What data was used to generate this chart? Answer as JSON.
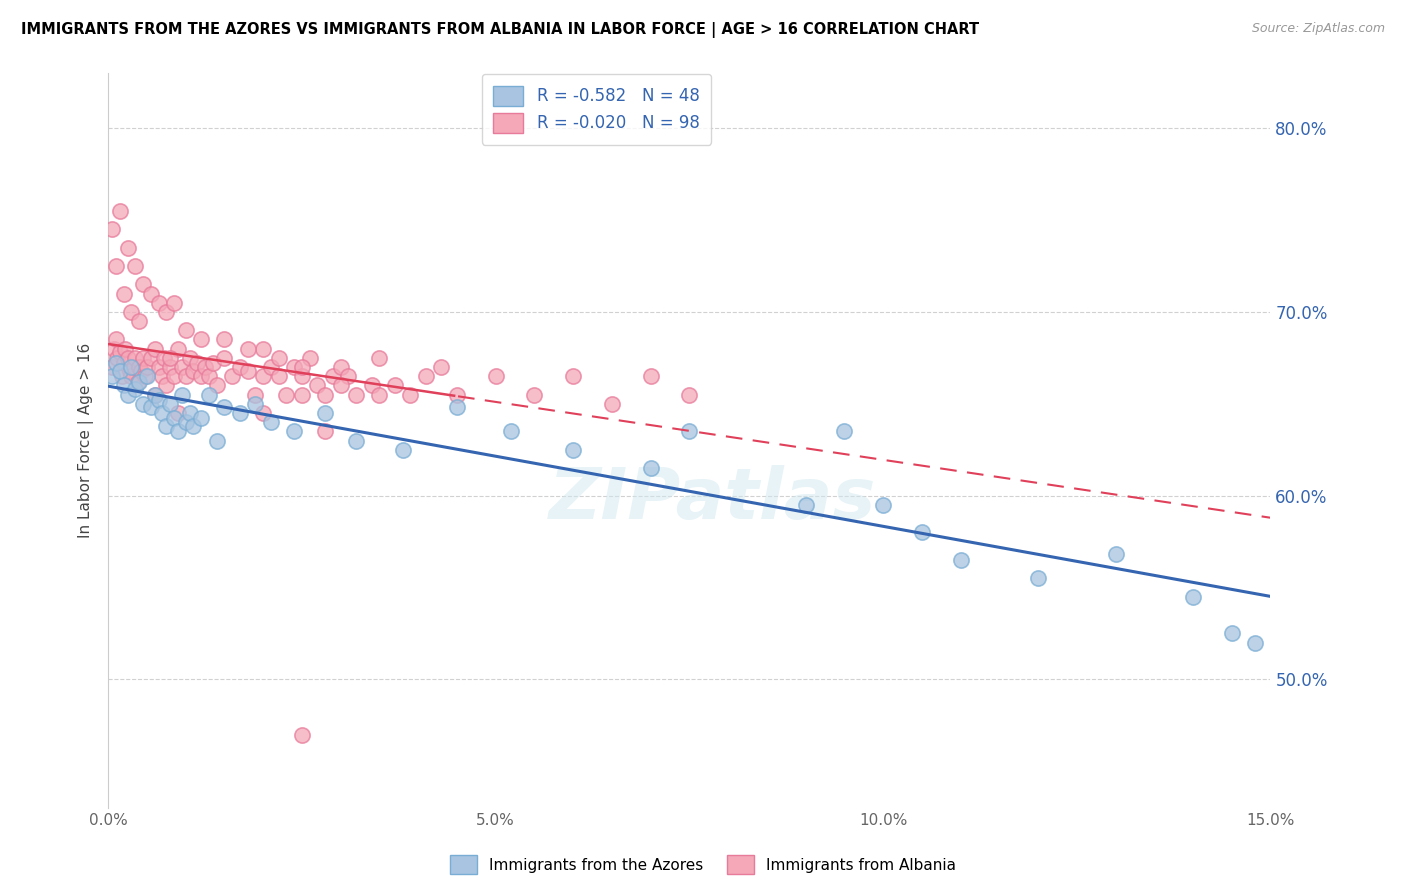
{
  "title": "IMMIGRANTS FROM THE AZORES VS IMMIGRANTS FROM ALBANIA IN LABOR FORCE | AGE > 16 CORRELATION CHART",
  "source": "Source: ZipAtlas.com",
  "xlim": [
    0.0,
    15.0
  ],
  "ylim": [
    43.0,
    83.0
  ],
  "ylabel": "In Labor Force | Age > 16",
  "legend_label1": "Immigrants from the Azores",
  "legend_label2": "Immigrants from Albania",
  "R1": "-0.582",
  "N1": "48",
  "R2": "-0.020",
  "N2": "98",
  "color_azores": "#a8c4e0",
  "color_albania": "#f4a8b8",
  "edge_azores": "#7aadd4",
  "edge_albania": "#e87a9a",
  "line_color_azores": "#3565b0",
  "line_color_albania": "#e0405a",
  "watermark": "ZIPatlas",
  "azores_x": [
    0.05,
    0.1,
    0.15,
    0.2,
    0.25,
    0.3,
    0.35,
    0.4,
    0.45,
    0.5,
    0.55,
    0.6,
    0.65,
    0.7,
    0.75,
    0.8,
    0.85,
    0.9,
    0.95,
    1.0,
    1.05,
    1.1,
    1.2,
    1.3,
    1.4,
    1.5,
    1.7,
    1.9,
    2.1,
    2.4,
    2.8,
    3.2,
    3.8,
    4.5,
    5.2,
    6.0,
    7.0,
    7.5,
    9.0,
    9.5,
    10.0,
    10.5,
    11.0,
    12.0,
    13.0,
    14.0,
    14.5,
    14.8
  ],
  "azores_y": [
    66.5,
    67.2,
    66.8,
    66.0,
    65.5,
    67.0,
    65.8,
    66.2,
    65.0,
    66.5,
    64.8,
    65.5,
    65.2,
    64.5,
    63.8,
    65.0,
    64.2,
    63.5,
    65.5,
    64.0,
    64.5,
    63.8,
    64.2,
    65.5,
    63.0,
    64.8,
    64.5,
    65.0,
    64.0,
    63.5,
    64.5,
    63.0,
    62.5,
    64.8,
    63.5,
    62.5,
    61.5,
    63.5,
    59.5,
    63.5,
    59.5,
    58.0,
    56.5,
    55.5,
    56.8,
    54.5,
    52.5,
    52.0
  ],
  "albania_x": [
    0.05,
    0.08,
    0.1,
    0.12,
    0.15,
    0.18,
    0.2,
    0.22,
    0.25,
    0.28,
    0.3,
    0.33,
    0.35,
    0.38,
    0.4,
    0.42,
    0.45,
    0.48,
    0.5,
    0.55,
    0.6,
    0.65,
    0.7,
    0.72,
    0.75,
    0.8,
    0.85,
    0.9,
    0.95,
    1.0,
    1.05,
    1.1,
    1.15,
    1.2,
    1.25,
    1.3,
    1.35,
    1.4,
    1.5,
    1.6,
    1.7,
    1.8,
    1.9,
    2.0,
    2.1,
    2.2,
    2.3,
    2.4,
    2.5,
    2.6,
    2.7,
    2.8,
    2.9,
    3.0,
    3.1,
    3.2,
    3.4,
    3.5,
    3.7,
    3.9,
    4.1,
    4.3,
    4.5,
    5.0,
    5.5,
    6.0,
    6.5,
    7.0,
    7.5,
    2.5,
    0.05,
    0.15,
    0.25,
    0.35,
    0.45,
    0.55,
    0.65,
    0.75,
    0.85,
    0.1,
    0.2,
    0.3,
    0.4,
    1.0,
    1.5,
    2.0,
    1.2,
    0.8,
    1.8,
    2.2,
    2.5,
    2.8,
    3.0,
    0.6,
    0.9,
    3.5,
    2.0,
    2.5
  ],
  "albania_y": [
    67.0,
    68.0,
    68.5,
    67.5,
    67.8,
    66.5,
    67.2,
    68.0,
    67.5,
    66.8,
    66.5,
    67.0,
    67.5,
    66.2,
    67.0,
    66.8,
    67.5,
    66.5,
    67.0,
    67.5,
    68.0,
    67.0,
    66.5,
    67.5,
    66.0,
    67.0,
    66.5,
    68.0,
    67.0,
    66.5,
    67.5,
    66.8,
    67.2,
    66.5,
    67.0,
    66.5,
    67.2,
    66.0,
    67.5,
    66.5,
    67.0,
    66.8,
    65.5,
    66.5,
    67.0,
    66.5,
    65.5,
    67.0,
    66.5,
    67.5,
    66.0,
    65.5,
    66.5,
    67.0,
    66.5,
    65.5,
    66.0,
    67.5,
    66.0,
    65.5,
    66.5,
    67.0,
    65.5,
    66.5,
    65.5,
    66.5,
    65.0,
    66.5,
    65.5,
    67.0,
    74.5,
    75.5,
    73.5,
    72.5,
    71.5,
    71.0,
    70.5,
    70.0,
    70.5,
    72.5,
    71.0,
    70.0,
    69.5,
    69.0,
    68.5,
    68.0,
    68.5,
    67.5,
    68.0,
    67.5,
    65.5,
    63.5,
    66.0,
    65.5,
    64.5,
    65.5,
    64.5,
    47.0
  ]
}
